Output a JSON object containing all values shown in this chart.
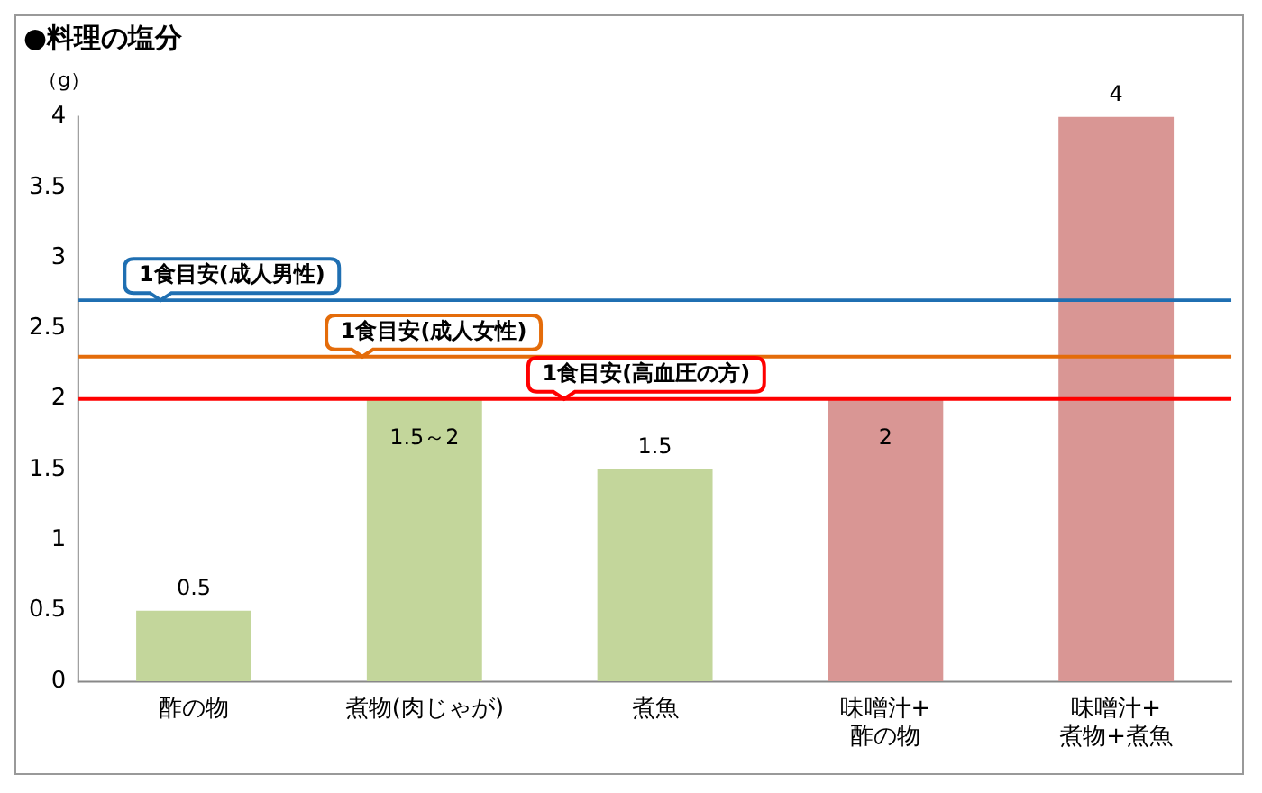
{
  "chart_data": {
    "type": "bar",
    "title": "●料理の塩分",
    "ylabel": "（g）",
    "categories": [
      "酢の物",
      "煮物(肉じゃが)",
      "煮魚",
      "味噌汁+\n酢の物",
      "味噌汁+\n煮物+煮魚"
    ],
    "values": [
      0.5,
      2,
      1.5,
      2,
      4
    ],
    "colors": [
      "#c3d69b",
      "#c3d69b",
      "#c3d69b",
      "#d99694",
      "#d99694"
    ],
    "value_labels": [
      "0.5",
      "1.5～2",
      "1.5",
      "2",
      "4"
    ],
    "ylim": [
      0,
      4
    ],
    "yticks": [
      0,
      0.5,
      1,
      1.5,
      2,
      2.5,
      3,
      3.5,
      4
    ],
    "ref_lines": [
      {
        "axis": "y",
        "value": 2.7,
        "label": "1食目安(成人男性)",
        "color": "#1f6fb2"
      },
      {
        "axis": "y",
        "value": 2.3,
        "label": "1食目安(成人女性)",
        "color": "#e46c0a"
      },
      {
        "axis": "y",
        "value": 2,
        "label": "1食目安(高血圧の方)",
        "color": "#ff0000"
      }
    ],
    "grid": false,
    "legend": false
  }
}
